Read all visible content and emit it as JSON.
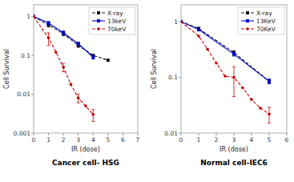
{
  "chart_data": [
    {
      "type": "line",
      "title": "Cancer cell- HSG",
      "xlabel": "IR (dose)",
      "ylabel": "Cell Survival",
      "xlim": [
        0,
        7
      ],
      "ylim": [
        0.001,
        2.0
      ],
      "xticks": [
        0,
        1,
        2,
        3,
        4,
        5,
        6,
        7
      ],
      "yticks": [
        0.001,
        0.01,
        0.1,
        1
      ],
      "log": "y",
      "grid": false,
      "legend": "upper right",
      "series": [
        {
          "name": "X-ray",
          "color": "#111111",
          "line_style": "dashed",
          "marker": "square",
          "x": [
            0,
            1,
            2,
            3,
            4,
            5
          ],
          "values": [
            1.0,
            0.6,
            0.36,
            0.18,
            0.1,
            0.075
          ],
          "errors": [
            0.0,
            0.06,
            0.04,
            0.02,
            0.0,
            0.0
          ]
        },
        {
          "name": "13keV",
          "color": "#0000cc",
          "line_style": "solid",
          "marker": "square",
          "x": [
            0,
            1,
            2,
            3,
            4
          ],
          "values": [
            1.0,
            0.68,
            0.38,
            0.2,
            0.09
          ],
          "errors": [
            0.0,
            0.06,
            0.05,
            0.02,
            0.01
          ]
        },
        {
          "name": "70keV",
          "color": "#cc0000",
          "line_style": "dashed",
          "marker": "circle",
          "x": [
            0,
            1,
            1.5,
            2,
            2.5,
            3,
            3.5,
            4
          ],
          "values": [
            1.0,
            0.28,
            0.12,
            0.05,
            0.018,
            0.008,
            0.005,
            0.003
          ],
          "errors": [
            0.0,
            0.1,
            0.0,
            0.012,
            0.0,
            0.002,
            0.0,
            0.001
          ]
        }
      ]
    },
    {
      "type": "line",
      "title": "Normal cell-IEC6",
      "xlabel": "IR (dose)",
      "ylabel": "Cell Survival",
      "xlim": [
        0,
        6
      ],
      "ylim": [
        0.01,
        2.0
      ],
      "xticks": [
        0,
        1,
        2,
        3,
        4,
        5,
        6
      ],
      "yticks": [
        0.01,
        0.1,
        1
      ],
      "log": "y",
      "grid": false,
      "legend": "upper right",
      "series": [
        {
          "name": "X-ray",
          "color": "#111111",
          "line_style": "dashed",
          "marker": "square",
          "x": [
            0,
            1,
            3,
            5
          ],
          "values": [
            1.0,
            0.75,
            0.28,
            0.085
          ],
          "errors": [
            0.0,
            0.04,
            0.02,
            0.008
          ]
        },
        {
          "name": "13KeV",
          "color": "#0000cc",
          "line_style": "solid",
          "marker": "square",
          "x": [
            0,
            1,
            3,
            5
          ],
          "values": [
            1.0,
            0.72,
            0.26,
            0.085
          ],
          "errors": [
            0.0,
            0.04,
            0.02,
            0.008
          ]
        },
        {
          "name": "70KeV",
          "color": "#cc0000",
          "line_style": "dashed",
          "marker": "circle",
          "x": [
            0,
            1,
            1.5,
            2,
            2.5,
            3,
            3.5,
            4,
            4.5,
            5
          ],
          "values": [
            1.0,
            0.55,
            0.32,
            0.18,
            0.105,
            0.1,
            0.065,
            0.04,
            0.028,
            0.022
          ],
          "errors": [
            0.0,
            0.0,
            0.0,
            0.0,
            0.0,
            0.055,
            0.0,
            0.0,
            0.0,
            0.007
          ]
        }
      ]
    }
  ]
}
